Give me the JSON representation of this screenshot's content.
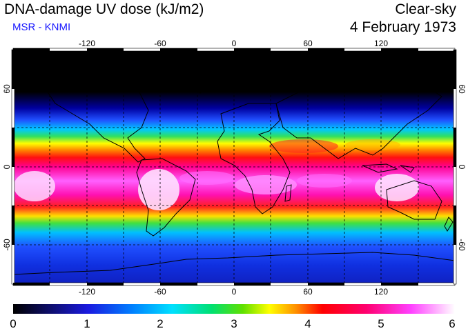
{
  "header": {
    "title": "DNA-damage UV dose (kJ/m2)",
    "subtitle": "MSR - KNMI",
    "sky_condition": "Clear-sky",
    "date": "4 February 1973"
  },
  "map": {
    "longitude_ticks": [
      "-120",
      "-60",
      "0",
      "60",
      "120"
    ],
    "latitude_ticks": [
      "60",
      "0",
      "-60"
    ],
    "lon_range": [
      -180,
      180
    ],
    "lat_range": [
      -90,
      90
    ]
  },
  "colorbar": {
    "labels": [
      "0",
      "1",
      "2",
      "3",
      "4",
      "5",
      "6"
    ],
    "colors": [
      "#000000",
      "#1010c0",
      "#0066ff",
      "#00ccff",
      "#00e080",
      "#40e000",
      "#ffff00",
      "#ff8000",
      "#ff0000",
      "#ff0080",
      "#ff40ff",
      "#ffffff"
    ]
  }
}
